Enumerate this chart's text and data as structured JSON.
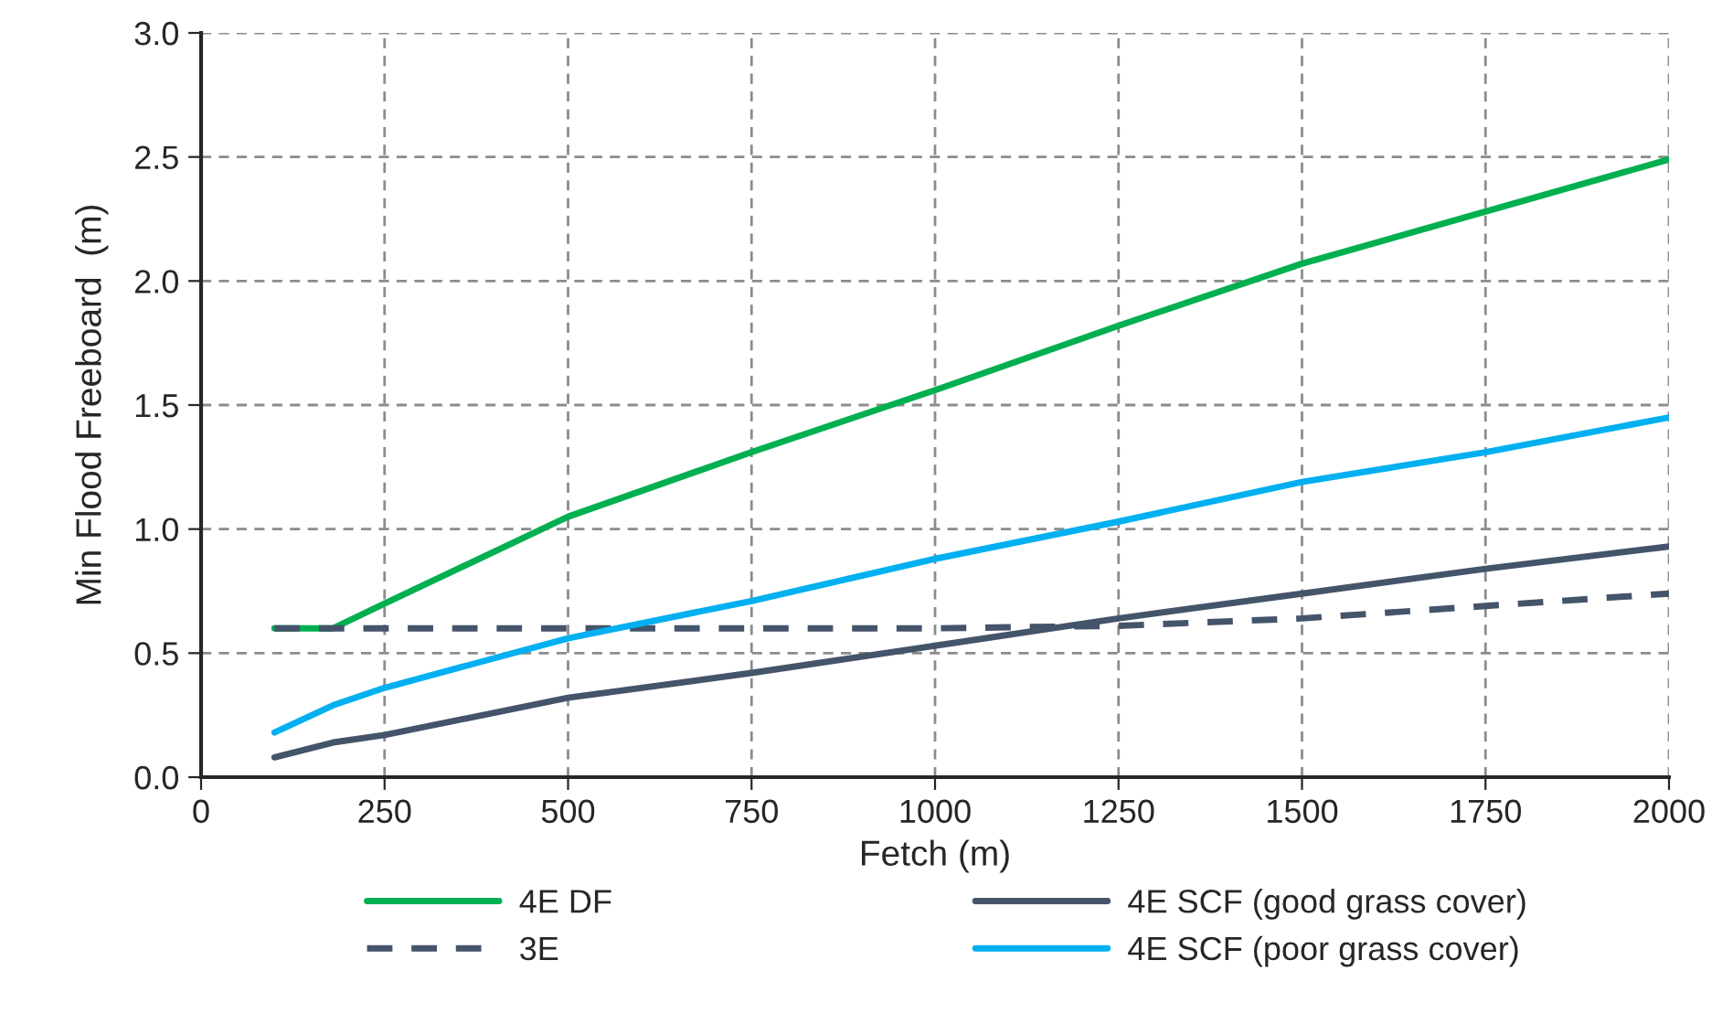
{
  "chart_data": {
    "type": "line",
    "xlabel": "Fetch (m)",
    "ylabel": "Min Flood Freeboard  (m)",
    "x": [
      100,
      180,
      250,
      500,
      750,
      1000,
      1250,
      1500,
      1750,
      2000
    ],
    "series": [
      {
        "name": "4E DF",
        "color": "#00b050",
        "line_style": "solid",
        "values": [
          0.6,
          0.6,
          0.7,
          1.05,
          1.31,
          1.56,
          1.82,
          2.07,
          2.28,
          2.49
        ]
      },
      {
        "name": "3E",
        "color": "#44546a",
        "line_style": "dashed",
        "values": [
          0.6,
          0.6,
          0.6,
          0.6,
          0.6,
          0.6,
          0.61,
          0.64,
          0.69,
          0.74
        ]
      },
      {
        "name": "4E SCF (good grass cover)",
        "color": "#44546a",
        "line_style": "solid",
        "values": [
          0.08,
          0.14,
          0.17,
          0.32,
          0.42,
          0.53,
          0.64,
          0.74,
          0.84,
          0.93
        ]
      },
      {
        "name": "4E SCF (poor grass cover)",
        "color": "#00b0f0",
        "line_style": "solid",
        "values": [
          0.18,
          0.29,
          0.36,
          0.56,
          0.71,
          0.88,
          1.03,
          1.19,
          1.31,
          1.45
        ]
      }
    ],
    "xlim": [
      0,
      2000
    ],
    "xticks": [
      0,
      250,
      500,
      750,
      1000,
      1250,
      1500,
      1750,
      2000
    ],
    "ylim": [
      0,
      3.0
    ],
    "yticks": [
      {
        "value": 0,
        "label": "0.0"
      },
      {
        "value": 0.5,
        "label": "0.5"
      },
      {
        "value": 1.0,
        "label": "1.0"
      },
      {
        "value": 1.5,
        "label": "1.5"
      },
      {
        "value": 2.0,
        "label": "2.0"
      },
      {
        "value": 2.5,
        "label": "2.5"
      },
      {
        "value": 3.0,
        "label": "3.0"
      }
    ],
    "grid": true,
    "legend": "bottom",
    "marker": "none"
  }
}
